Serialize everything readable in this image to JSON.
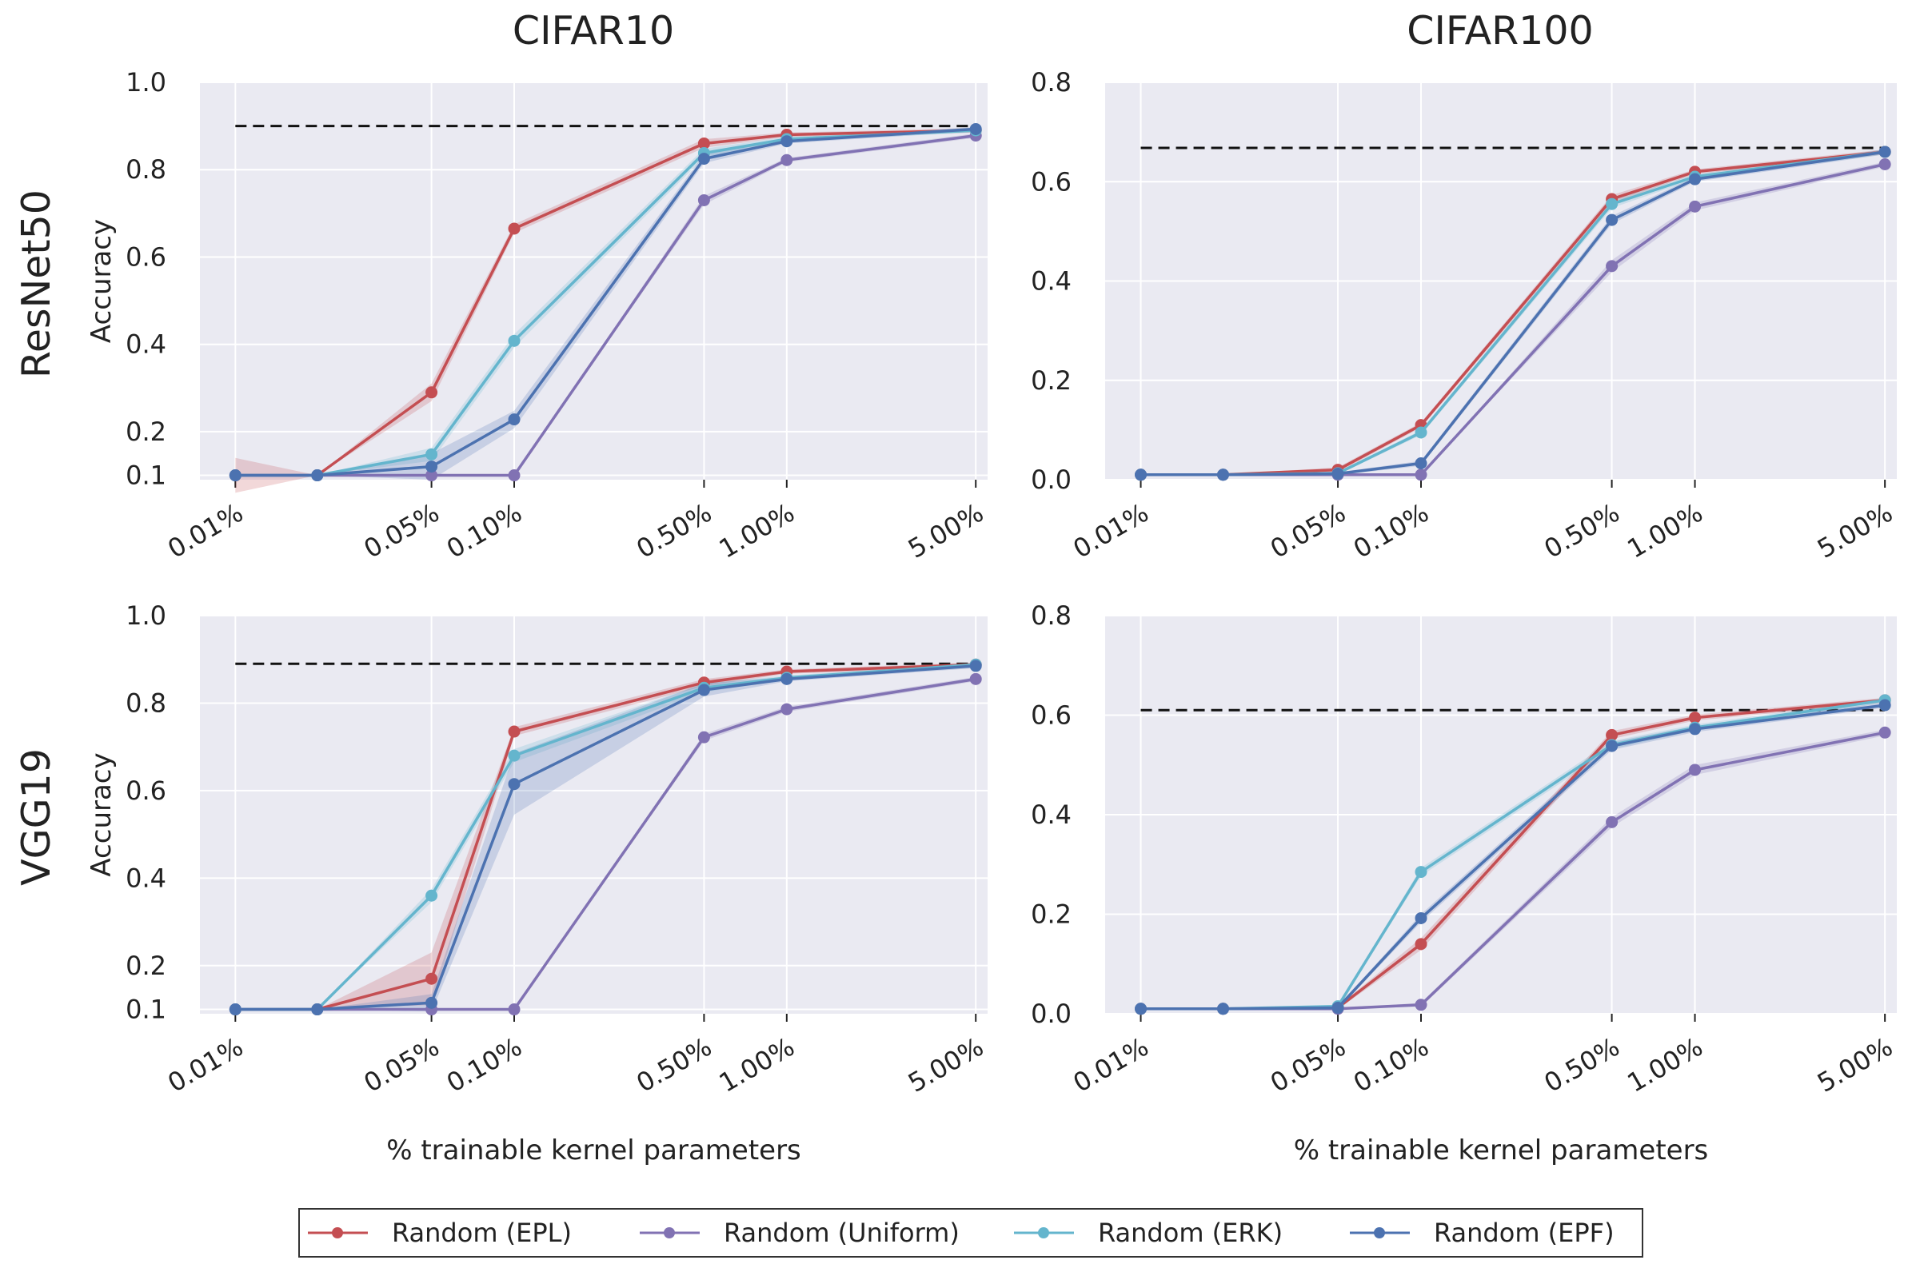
{
  "figure": {
    "column_titles": [
      "CIFAR10",
      "CIFAR100"
    ],
    "row_titles": [
      "ResNet50",
      "VGG19"
    ],
    "ylabel": "Accuracy",
    "xlabel": "% trainable kernel parameters"
  },
  "legend": {
    "entries": [
      {
        "name": "Random (EPL)",
        "color": "#c44e52"
      },
      {
        "name": "Random (Uniform)",
        "color": "#8172b3"
      },
      {
        "name": "Random (ERK)",
        "color": "#64b5cd"
      },
      {
        "name": "Random (EPF)",
        "color": "#4c72b0"
      }
    ]
  },
  "colors": {
    "plot_background": "#eaeaf2",
    "grid": "#ffffff",
    "baseline": "#111111"
  },
  "chart_data": [
    {
      "type": "line",
      "title": "CIFAR10",
      "row": "ResNet50",
      "xlabel": "",
      "ylabel": "Accuracy",
      "x": [
        0.01,
        0.02,
        0.05,
        0.1,
        0.5,
        1.0,
        5.0
      ],
      "xticks": [
        0.01,
        0.05,
        0.1,
        0.5,
        1.0,
        5.0
      ],
      "xtick_labels": [
        "0.01%",
        "0.05%",
        "0.10%",
        "0.50%",
        "1.00%",
        "5.00%"
      ],
      "yticks": [
        0.1,
        0.2,
        0.4,
        0.6,
        0.8,
        1.0
      ],
      "ytick_labels": [
        "0.1",
        "0.2",
        "0.4",
        "0.6",
        "0.8",
        "1.0"
      ],
      "ylim": [
        0.09,
        1.0
      ],
      "baseline": 0.9,
      "series": [
        {
          "name": "Random (EPL)",
          "values": [
            0.1,
            0.1,
            0.29,
            0.665,
            0.86,
            0.88,
            0.89
          ],
          "band": [
            0.04,
            0.0,
            0.02,
            0.01,
            0.01,
            0.005,
            0.005
          ]
        },
        {
          "name": "Random (Uniform)",
          "values": [
            0.1,
            0.1,
            0.1,
            0.1,
            0.73,
            0.822,
            0.878
          ],
          "band": [
            0.0,
            0.0,
            0.0,
            0.0,
            0.01,
            0.005,
            0.005
          ]
        },
        {
          "name": "Random (ERK)",
          "values": [
            0.1,
            0.1,
            0.148,
            0.408,
            0.838,
            0.87,
            0.89
          ],
          "band": [
            0.0,
            0.0,
            0.015,
            0.015,
            0.01,
            0.005,
            0.005
          ]
        },
        {
          "name": "Random (EPF)",
          "values": [
            0.1,
            0.1,
            0.12,
            0.228,
            0.825,
            0.865,
            0.893
          ],
          "band": [
            0.0,
            0.0,
            0.03,
            0.02,
            0.01,
            0.005,
            0.005
          ]
        }
      ]
    },
    {
      "type": "line",
      "title": "CIFAR100",
      "row": "ResNet50",
      "xlabel": "",
      "ylabel": "",
      "x": [
        0.01,
        0.02,
        0.05,
        0.1,
        0.5,
        1.0,
        5.0
      ],
      "xticks": [
        0.01,
        0.05,
        0.1,
        0.5,
        1.0,
        5.0
      ],
      "xtick_labels": [
        "0.01%",
        "0.05%",
        "0.10%",
        "0.50%",
        "1.00%",
        "5.00%"
      ],
      "yticks": [
        0.0,
        0.2,
        0.4,
        0.6,
        0.8
      ],
      "ytick_labels": [
        "0.0",
        "0.2",
        "0.4",
        "0.6",
        "0.8"
      ],
      "ylim": [
        0.0,
        0.8
      ],
      "baseline": 0.668,
      "series": [
        {
          "name": "Random (EPL)",
          "values": [
            0.01,
            0.01,
            0.02,
            0.11,
            0.565,
            0.62,
            0.66
          ],
          "band": [
            0.0,
            0.0,
            0.005,
            0.005,
            0.008,
            0.005,
            0.005
          ]
        },
        {
          "name": "Random (Uniform)",
          "values": [
            0.01,
            0.01,
            0.01,
            0.01,
            0.43,
            0.55,
            0.635
          ],
          "band": [
            0.0,
            0.0,
            0.0,
            0.0,
            0.012,
            0.008,
            0.005
          ]
        },
        {
          "name": "Random (ERK)",
          "values": [
            0.01,
            0.01,
            0.013,
            0.095,
            0.555,
            0.61,
            0.66
          ],
          "band": [
            0.0,
            0.0,
            0.003,
            0.005,
            0.008,
            0.005,
            0.005
          ]
        },
        {
          "name": "Random (EPF)",
          "values": [
            0.01,
            0.01,
            0.012,
            0.033,
            0.523,
            0.605,
            0.66
          ],
          "band": [
            0.0,
            0.0,
            0.003,
            0.005,
            0.008,
            0.005,
            0.005
          ]
        }
      ]
    },
    {
      "type": "line",
      "title": "",
      "row": "VGG19",
      "xlabel": "% trainable kernel parameters",
      "ylabel": "Accuracy",
      "x": [
        0.01,
        0.02,
        0.05,
        0.1,
        0.5,
        1.0,
        5.0
      ],
      "xticks": [
        0.01,
        0.05,
        0.1,
        0.5,
        1.0,
        5.0
      ],
      "xtick_labels": [
        "0.01%",
        "0.05%",
        "0.10%",
        "0.50%",
        "1.00%",
        "5.00%"
      ],
      "yticks": [
        0.1,
        0.2,
        0.4,
        0.6,
        0.8,
        1.0
      ],
      "ytick_labels": [
        "0.1",
        "0.2",
        "0.4",
        "0.6",
        "0.8",
        "1.0"
      ],
      "ylim": [
        0.09,
        1.0
      ],
      "baseline": 0.89,
      "series": [
        {
          "name": "Random (EPL)",
          "values": [
            0.1,
            0.1,
            0.17,
            0.735,
            0.847,
            0.872,
            0.888
          ],
          "band": [
            0.0,
            0.0,
            0.06,
            0.01,
            0.008,
            0.005,
            0.005
          ]
        },
        {
          "name": "Random (Uniform)",
          "values": [
            0.1,
            0.1,
            0.1,
            0.1,
            0.722,
            0.786,
            0.855
          ],
          "band": [
            0.0,
            0.0,
            0.0,
            0.0,
            0.008,
            0.006,
            0.005
          ]
        },
        {
          "name": "Random (ERK)",
          "values": [
            0.1,
            0.1,
            0.36,
            0.68,
            0.835,
            0.858,
            0.888
          ],
          "band": [
            0.0,
            0.0,
            0.015,
            0.015,
            0.01,
            0.005,
            0.005
          ]
        },
        {
          "name": "Random (EPF)",
          "values": [
            0.1,
            0.1,
            0.115,
            0.615,
            0.83,
            0.855,
            0.885
          ],
          "band": [
            0.0,
            0.0,
            0.02,
            0.07,
            0.015,
            0.005,
            0.005
          ]
        }
      ]
    },
    {
      "type": "line",
      "title": "",
      "row": "VGG19",
      "xlabel": "% trainable kernel parameters",
      "ylabel": "",
      "x": [
        0.01,
        0.02,
        0.05,
        0.1,
        0.5,
        1.0,
        5.0
      ],
      "xticks": [
        0.01,
        0.05,
        0.1,
        0.5,
        1.0,
        5.0
      ],
      "xtick_labels": [
        "0.01%",
        "0.05%",
        "0.10%",
        "0.50%",
        "1.00%",
        "5.00%"
      ],
      "yticks": [
        0.0,
        0.2,
        0.4,
        0.6,
        0.8
      ],
      "ytick_labels": [
        "0.0",
        "0.2",
        "0.4",
        "0.6",
        "0.8"
      ],
      "ylim": [
        0.0,
        0.8
      ],
      "baseline": 0.61,
      "series": [
        {
          "name": "Random (EPL)",
          "values": [
            0.01,
            0.01,
            0.012,
            0.14,
            0.56,
            0.595,
            0.63
          ],
          "band": [
            0.0,
            0.0,
            0.003,
            0.012,
            0.008,
            0.006,
            0.005
          ]
        },
        {
          "name": "Random (Uniform)",
          "values": [
            0.01,
            0.01,
            0.01,
            0.018,
            0.385,
            0.49,
            0.565
          ],
          "band": [
            0.0,
            0.0,
            0.0,
            0.004,
            0.01,
            0.01,
            0.006
          ]
        },
        {
          "name": "Random (ERK)",
          "values": [
            0.01,
            0.01,
            0.015,
            0.285,
            0.54,
            0.575,
            0.63
          ],
          "band": [
            0.0,
            0.0,
            0.003,
            0.008,
            0.008,
            0.006,
            0.005
          ]
        },
        {
          "name": "Random (EPF)",
          "values": [
            0.01,
            0.01,
            0.012,
            0.192,
            0.538,
            0.572,
            0.62
          ],
          "band": [
            0.0,
            0.0,
            0.003,
            0.008,
            0.008,
            0.006,
            0.005
          ]
        }
      ]
    }
  ]
}
